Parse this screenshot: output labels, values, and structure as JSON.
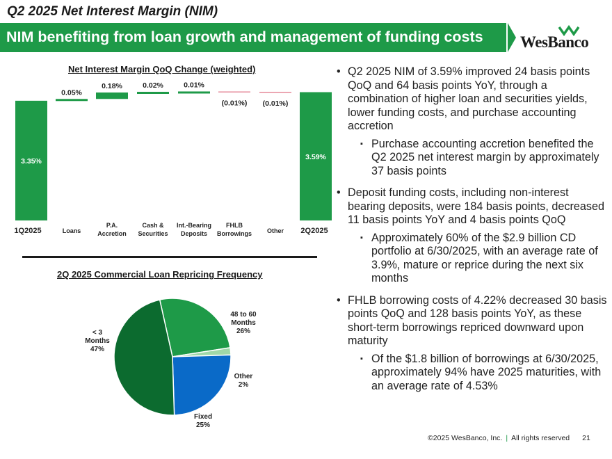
{
  "page": {
    "title": "Q2 2025 Net Interest Margin (NIM)",
    "banner": "NIM benefiting from loan growth and management of funding costs",
    "logo": "WesBanco",
    "footer": "©2025 WesBanco, Inc.",
    "footer_rights": "All rights reserved",
    "page_number": "21",
    "colors": {
      "green": "#1e9a48",
      "dark_green": "#0c6b2f",
      "blue": "#0a6ac8",
      "light_green": "#9fd7a8",
      "negative": "#e58a9a"
    }
  },
  "bullets": [
    {
      "text": "Q2 2025 NIM of 3.59% improved 24 basis points QoQ and 64 basis points YoY, through a combination of higher loan and securities yields, lower funding costs, and purchase accounting accretion",
      "sub": [
        "Purchase accounting accretion benefited the Q2 2025 net interest margin by approximately 37 basis points"
      ]
    },
    {
      "text": "Deposit funding costs, including non-interest bearing deposits, were 184 basis points, decreased 11 basis points YoY and 4 basis points QoQ",
      "sub": [
        "Approximately 60% of the $2.9 billion CD portfolio at 6/30/2025, with an average rate of 3.9%, mature or reprice during the next six months"
      ]
    },
    {
      "text": "FHLB borrowing costs of 4.22% decreased 30 basis points QoQ and 128 basis points YoY, as these short-term borrowings repriced downward upon maturity",
      "sub": [
        "Of the $1.8 billion of borrowings at 6/30/2025, approximately 94% have 2025 maturities, with an average rate of 4.53%"
      ]
    }
  ],
  "chart_data": [
    {
      "type": "bar",
      "subtype": "waterfall",
      "title": "Net Interest Margin QoQ Change (weighted)",
      "categories": [
        {
          "line1": "1Q2025",
          "line2": ""
        },
        {
          "line1": "Loans",
          "line2": ""
        },
        {
          "line1": "P.A.",
          "line2": "Accretion"
        },
        {
          "line1": "Cash &",
          "line2": "Securities"
        },
        {
          "line1": "Int.-Bearing",
          "line2": "Deposits"
        },
        {
          "line1": "FHLB",
          "line2": "Borrowings"
        },
        {
          "line1": "Other",
          "line2": ""
        },
        {
          "line1": "2Q2025",
          "line2": ""
        }
      ],
      "values": [
        3.35,
        0.05,
        0.18,
        0.02,
        0.01,
        -0.01,
        -0.01,
        3.59
      ],
      "labels": [
        "3.35%",
        "0.05%",
        "0.18%",
        "0.02%",
        "0.01%",
        "(0.01%)",
        "(0.01%)",
        "3.59%"
      ],
      "kinds": [
        "total",
        "delta",
        "delta",
        "delta",
        "delta",
        "delta",
        "delta",
        "total"
      ]
    },
    {
      "type": "pie",
      "title": "2Q 2025 Commercial Loan Repricing Frequency",
      "slices": [
        {
          "name_lines": [
            "48 to 60",
            "Months"
          ],
          "value": 26,
          "label": "26%",
          "color": "#1e9a48"
        },
        {
          "name_lines": [
            "Other"
          ],
          "value": 2,
          "label": "2%",
          "color": "#9fd7a8"
        },
        {
          "name_lines": [
            "Fixed"
          ],
          "value": 25,
          "label": "25%",
          "color": "#0a6ac8"
        },
        {
          "name_lines": [
            "< 3",
            "Months"
          ],
          "value": 47,
          "label": "47%",
          "color": "#0c6b2f"
        }
      ]
    }
  ]
}
